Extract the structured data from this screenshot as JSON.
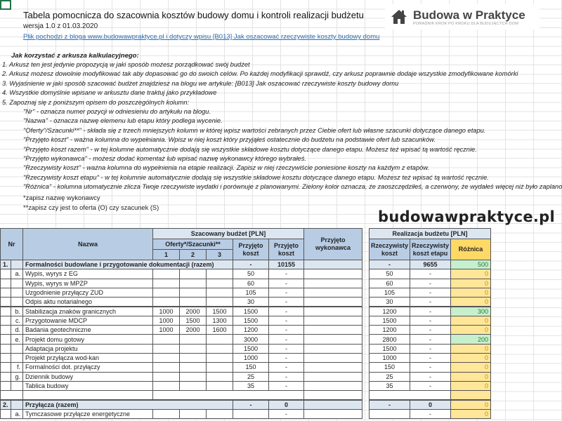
{
  "header": {
    "title": "Tabela pomocnicza do szacownia kosztów budowy domu i kontroli realizacji budżetu",
    "version": "wersja 1.0 z 01.03.2020",
    "link": "Plik pochodzi z bloga www.budowawpraktyce.pl i dotyczy wpisu [B013] Jak oszacować rzeczywiste koszty budowy domu"
  },
  "logo": {
    "name": "Budowa w Praktyce",
    "tagline": "PORADNIK KROK PO KROKU DLA BUDUJĄCYCH DOM",
    "icon": "house-icon"
  },
  "instructions": {
    "heading": "Jak korzystać z arkusza kalkulacyjnego:",
    "items": [
      "1. Arkusz ten jest jedynie propozycją w jaki sposób możesz porządkować swój budżet",
      "2. Arkusz możesz dowolnie modyfikować tak aby dopasować go do swoich celów. Po każdej modyfikacji sprawdź, czy arkusz poprawnie dodaje wszystkie zmodyfikowane komórki",
      "3. Wyjaśnienie w jaki sposób szacować budżet znajdziesz na blogu we artykule: [B013] Jak oszacować rzeczywiste koszty budowy domu",
      "4. Wszystkie domyślnie wpisane w arkusztu dane traktuj jako przykładowe",
      "5. Zapoznaj się z poniższym opisem do poszczególnych kolumn:"
    ],
    "columns": [
      "\"Nr\" - oznacza numer pozycji w odniesieniu do artykułu na blogu.",
      "\"Nazwa\" - oznacza nazwę elemenu lub etapu który podlega wycenie.",
      "\"Oferty\"/Szacunki**\" - składa się z trzech mniejszych kolumn w której wpisz wartości zebranych przez Ciebie ofert lub własne szacunki dotyczące danego etapu.",
      "\"Przyjęto koszt\" - ważna kolumna do wypełniania. Wpisz w niej koszt który przyjąłeś ostatecznie do budżetu na podstawie ofert lub szacunków.",
      "\"Przyjęto koszt razem\" - w tej kolumne automatycznie dodają się wszystkie składowe kosztu dotyczące danego etapu. Możesz też wpisać tą wartość ręcznie.",
      "\"Przyjęto wykonawca\" - możesz dodać komentaż lub wpisać nazwę wykonawcy którego wybrałeś.",
      "\"Rzeczywisty koszt\" - ważna kolumna do wypełnienia na etapie realizacji. Zapisz w niej rzeczywiście poniesione koszty na każdym z etapów.",
      "\"Rzeczywisty koszt etapu\" - w tej kolumnie automatycznie dodają się wszystkie składowe kosztu dotyczące danego etapu. Możesz też wpisać tą wartość ręcznie.",
      "\"Różnica\" - kolumna utomatycznie zlicza Twoje rzeczywiste wydatki i porównuje z planowanymi. Zielony kolor oznacza, że zaoszczędziłeś, a czerwony, że wydałeś więcej niż było zaplanowane"
    ],
    "notes": [
      "*zapisz nazwę wykonawcy",
      "**zapisz czy jest to oferta (O) czy szacunek (S)"
    ]
  },
  "table": {
    "headers": {
      "nr": "Nr",
      "name": "Nazwa",
      "budget": "Szacowany budżet [PLN]",
      "offers": "Oferty*/Szacunki**",
      "o1": "1",
      "o2": "2",
      "o3": "3",
      "cost": "Przyjęto koszt",
      "cost_total": "Przyjęto koszt",
      "contractor": "Przyjęto wykonawca",
      "realization": "Realizacja budżetu [PLN]",
      "actual": "Rzeczywisty koszt",
      "actual_stage": "Rzeczywisty koszt etapu",
      "diff": "Różnica"
    },
    "rows": [
      {
        "section": true,
        "nr": "1.",
        "sub": "",
        "name": "Formalności budowlane i przygotowanie dokumentacji (razem)",
        "o1": "",
        "o2": "",
        "o3": "",
        "cost": "-",
        "cost_total": "10155",
        "contractor": "",
        "actual": "-",
        "actual_stage": "9655",
        "diff": "500",
        "diff_status": "positive"
      },
      {
        "nr": "",
        "sub": "a.",
        "name": "Wypis, wyrys z EG",
        "o1": "",
        "o2": "",
        "o3": "",
        "cost": "50",
        "cost_total": "-",
        "contractor": "",
        "actual": "50",
        "actual_stage": "-",
        "diff": "0"
      },
      {
        "nr": "",
        "sub": "",
        "name": "Wypis, wyrys w MPZP",
        "o1": "",
        "o2": "",
        "o3": "",
        "cost": "60",
        "cost_total": "-",
        "contractor": "",
        "actual": "60",
        "actual_stage": "-",
        "diff": "0"
      },
      {
        "nr": "",
        "sub": "",
        "name": "Uzgodnienie przyłączy ZUD",
        "o1": "",
        "o2": "",
        "o3": "",
        "cost": "105",
        "cost_total": "-",
        "contractor": "",
        "actual": "105",
        "actual_stage": "-",
        "diff": "0"
      },
      {
        "nr": "",
        "sub": "",
        "name": "Odpis aktu notarialnego",
        "o1": "",
        "o2": "",
        "o3": "",
        "cost": "30",
        "cost_total": "-",
        "contractor": "",
        "actual": "30",
        "actual_stage": "-",
        "diff": "0"
      },
      {
        "nr": "",
        "sub": "b.",
        "name": "Stabilizacja znaków granicznych",
        "o1": "1000",
        "o2": "2000",
        "o3": "1500",
        "cost": "1500",
        "cost_total": "-",
        "contractor": "",
        "actual": "1200",
        "actual_stage": "-",
        "diff": "300",
        "diff_status": "positive"
      },
      {
        "nr": "",
        "sub": "c.",
        "name": "Przygotowanie MDCP",
        "o1": "1000",
        "o2": "1500",
        "o3": "1300",
        "cost": "1500",
        "cost_total": "-",
        "contractor": "",
        "actual": "1500",
        "actual_stage": "-",
        "diff": "0"
      },
      {
        "nr": "",
        "sub": "d.",
        "name": "Badania geotechniczne",
        "o1": "1000",
        "o2": "2000",
        "o3": "1600",
        "cost": "1200",
        "cost_total": "-",
        "contractor": "",
        "actual": "1200",
        "actual_stage": "-",
        "diff": "0"
      },
      {
        "nr": "",
        "sub": "e.",
        "name": "Projekt domu gotowy",
        "o1": "",
        "o2": "",
        "o3": "",
        "cost": "3000",
        "cost_total": "-",
        "contractor": "",
        "actual": "2800",
        "actual_stage": "-",
        "diff": "200",
        "diff_status": "positive"
      },
      {
        "nr": "",
        "sub": "",
        "name": "Adaptacja projektu",
        "o1": "",
        "o2": "",
        "o3": "",
        "cost": "1500",
        "cost_total": "-",
        "contractor": "",
        "actual": "1500",
        "actual_stage": "-",
        "diff": "0"
      },
      {
        "nr": "",
        "sub": "",
        "name": "Projekt przyłącza wod-kan",
        "o1": "",
        "o2": "",
        "o3": "",
        "cost": "1000",
        "cost_total": "-",
        "contractor": "",
        "actual": "1000",
        "actual_stage": "-",
        "diff": "0"
      },
      {
        "nr": "",
        "sub": "f.",
        "name": "Formalności dot. przyłączy",
        "o1": "",
        "o2": "",
        "o3": "",
        "cost": "150",
        "cost_total": "-",
        "contractor": "",
        "actual": "150",
        "actual_stage": "-",
        "diff": "0"
      },
      {
        "nr": "",
        "sub": "g.",
        "name": "Dziennik budowy",
        "o1": "",
        "o2": "",
        "o3": "",
        "cost": "25",
        "cost_total": "-",
        "contractor": "",
        "actual": "25",
        "actual_stage": "-",
        "diff": "0"
      },
      {
        "nr": "",
        "sub": "",
        "name": "Tablica budowy",
        "o1": "",
        "o2": "",
        "o3": "",
        "cost": "35",
        "cost_total": "-",
        "contractor": "",
        "actual": "35",
        "actual_stage": "-",
        "diff": "0"
      },
      {
        "blank": true
      },
      {
        "section": true,
        "nr": "2.",
        "sub": "",
        "name": "Przyłącza (razem)",
        "o1": "",
        "o2": "",
        "o3": "",
        "cost": "-",
        "cost_total": "0",
        "contractor": "",
        "actual": "-",
        "actual_stage": "0",
        "diff": "0"
      },
      {
        "nr": "",
        "sub": "a.",
        "name": "Tymczasowe przyłącze energetyczne",
        "o1": "",
        "o2": "",
        "o3": "",
        "cost": "",
        "cost_total": "-",
        "contractor": "",
        "actual": "",
        "actual_stage": "-",
        "diff": "0"
      }
    ]
  },
  "watermark": "budowawpraktyce.pl",
  "colors": {
    "header_blue": "#b8cce4",
    "section_blue": "#dce6f1",
    "diff_yellow": "#ffe699",
    "diff_orange": "#ffd966",
    "saving_green": "#c6efce"
  }
}
